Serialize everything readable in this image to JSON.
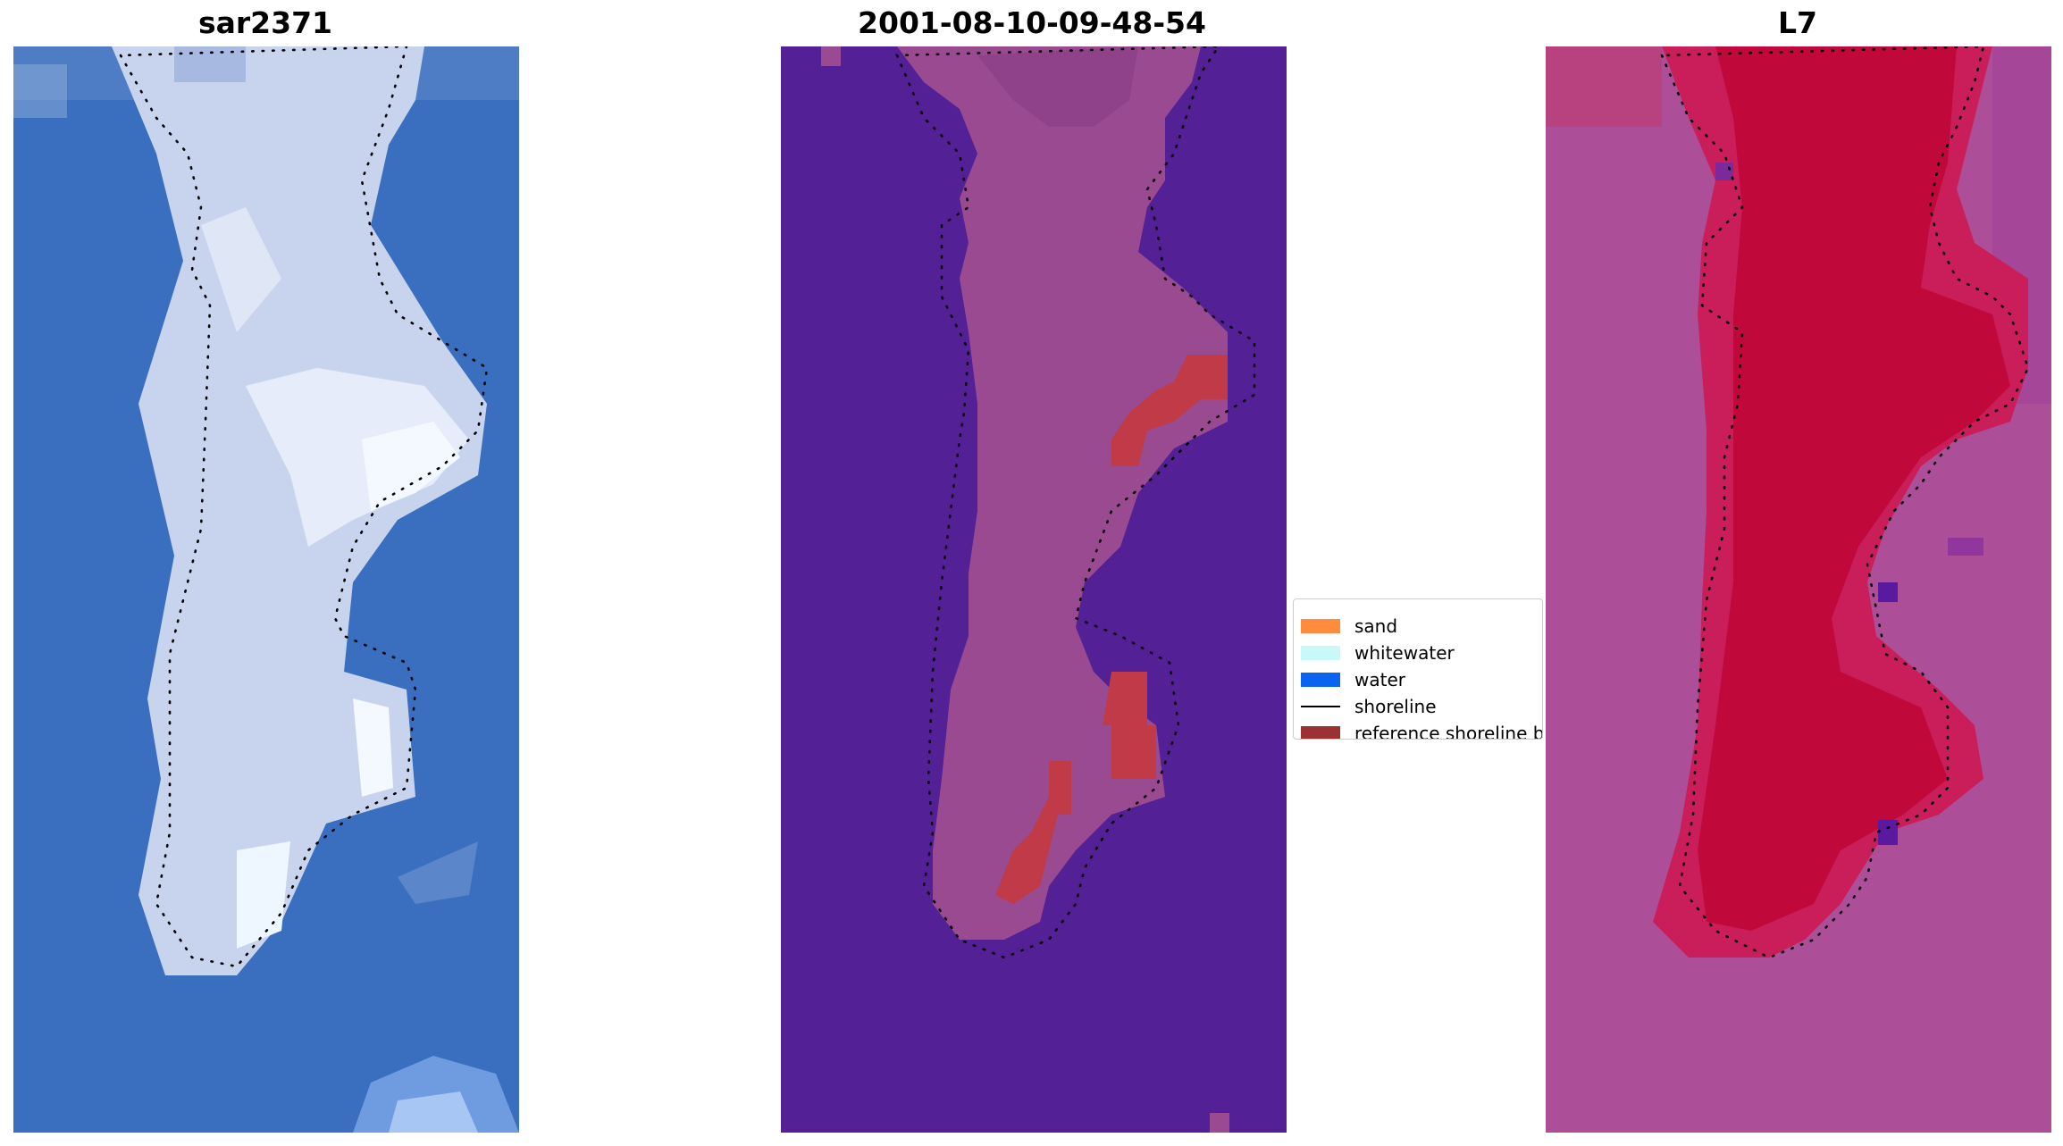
{
  "panels": [
    {
      "title": "sar2371",
      "kind": "rgb"
    },
    {
      "title": "2001-08-10-09-48-54",
      "kind": "classified"
    },
    {
      "title": "L7",
      "kind": "index"
    }
  ],
  "legend": {
    "items": [
      {
        "label": "sand",
        "color": "#ff8c3c",
        "type": "patch"
      },
      {
        "label": "whitewater",
        "color": "#c8f8f8",
        "type": "patch"
      },
      {
        "label": "water",
        "color": "#0a64f0",
        "type": "patch"
      },
      {
        "label": "shoreline",
        "color": "#000000",
        "type": "line"
      },
      {
        "label": "reference shoreline b",
        "color": "#9b3232",
        "type": "patch"
      }
    ]
  },
  "colors": {
    "rgb_water": "#3a6fc0",
    "rgb_land": "#c8d4ee",
    "rgb_bright": "#f4f8ff",
    "classified_background": "#532096",
    "classified_land": "#9a4a90",
    "classified_buffer": "#c03a48",
    "index_background": "#ad4f98",
    "index_land": "#c0083a",
    "shoreline_dots": "#000000"
  }
}
